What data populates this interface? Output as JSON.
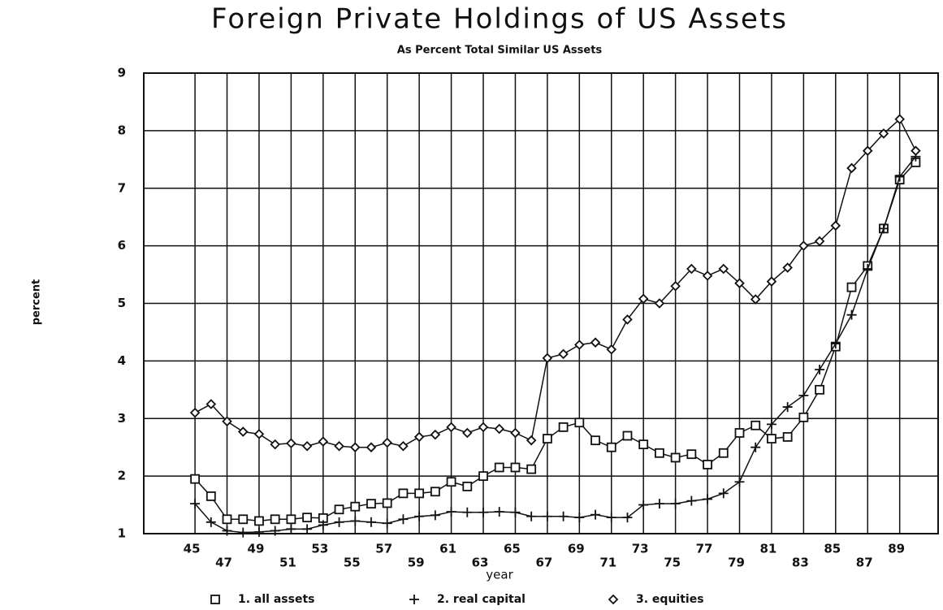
{
  "chart_data": {
    "type": "line",
    "title": "Foreign Private Holdings of US Assets",
    "subtitle": "As Percent Total Similar US Assets",
    "x_label": "year",
    "y_label": "percent",
    "x": [
      45,
      46,
      47,
      48,
      49,
      50,
      51,
      52,
      53,
      54,
      55,
      56,
      57,
      58,
      59,
      60,
      61,
      62,
      63,
      64,
      65,
      66,
      67,
      68,
      69,
      70,
      71,
      72,
      73,
      74,
      75,
      76,
      77,
      78,
      79,
      80,
      81,
      82,
      83,
      84,
      85,
      86,
      87,
      88,
      89,
      90
    ],
    "series": [
      {
        "name": "1. all assets",
        "color": "#111111",
        "marker": "square",
        "values": [
          1.95,
          1.65,
          1.25,
          1.25,
          1.22,
          1.25,
          1.25,
          1.28,
          1.27,
          1.42,
          1.47,
          1.52,
          1.53,
          1.7,
          1.7,
          1.73,
          1.9,
          1.82,
          2.0,
          2.15,
          2.15,
          2.12,
          2.65,
          2.85,
          2.93,
          2.62,
          2.5,
          2.7,
          2.55,
          2.4,
          2.32,
          2.38,
          2.2,
          2.4,
          2.75,
          2.88,
          2.65,
          2.68,
          3.02,
          3.5,
          4.25,
          5.28,
          5.65,
          6.3,
          7.15,
          7.45
        ]
      },
      {
        "name": "2. real capital",
        "color": "#111111",
        "marker": "plus",
        "values": [
          1.52,
          1.2,
          1.05,
          1.02,
          1.03,
          1.05,
          1.08,
          1.08,
          1.15,
          1.2,
          1.22,
          1.2,
          1.18,
          1.25,
          1.3,
          1.32,
          1.38,
          1.37,
          1.37,
          1.38,
          1.37,
          1.3,
          1.3,
          1.3,
          1.28,
          1.33,
          1.28,
          1.28,
          1.5,
          1.52,
          1.52,
          1.57,
          1.6,
          1.7,
          1.9,
          2.5,
          2.9,
          3.2,
          3.4,
          3.85,
          4.3,
          4.8,
          5.6,
          6.3,
          7.2,
          7.55
        ]
      },
      {
        "name": "3. equities",
        "color": "#111111",
        "marker": "diamond",
        "values": [
          3.1,
          3.25,
          2.95,
          2.77,
          2.73,
          2.55,
          2.57,
          2.52,
          2.6,
          2.52,
          2.5,
          2.5,
          2.58,
          2.52,
          2.68,
          2.72,
          2.85,
          2.75,
          2.85,
          2.82,
          2.75,
          2.62,
          4.05,
          4.12,
          4.28,
          4.32,
          4.2,
          4.72,
          5.08,
          5.0,
          5.3,
          5.6,
          5.48,
          5.6,
          5.35,
          5.07,
          5.38,
          5.62,
          6.0,
          6.08,
          6.35,
          7.35,
          7.65,
          7.95,
          8.2,
          7.65
        ]
      }
    ],
    "xlim": [
      41.8,
      91.4
    ],
    "xticks": [
      45,
      47,
      49,
      51,
      53,
      55,
      57,
      59,
      61,
      63,
      65,
      67,
      69,
      71,
      73,
      75,
      77,
      79,
      81,
      83,
      85,
      87,
      89
    ],
    "ylim": [
      1,
      9
    ],
    "yticks": [
      1,
      2,
      3,
      4,
      5,
      6,
      7,
      8,
      9
    ],
    "grid": true
  }
}
